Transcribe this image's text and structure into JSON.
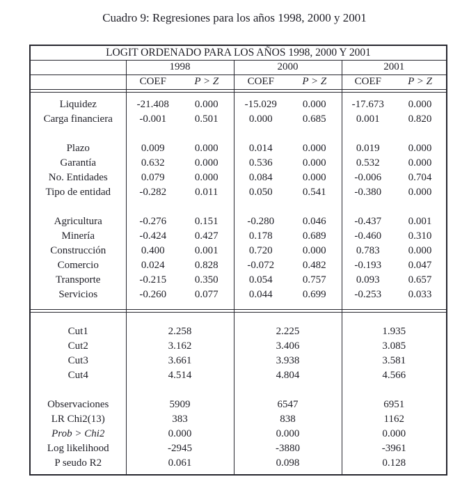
{
  "caption": "Cuadro 9: Regresiones para los años 1998, 2000 y 2001",
  "colors": {
    "text": "#1e1e26",
    "border": "#26262e",
    "background": "#ffffff"
  },
  "table": {
    "title": "LOGIT ORDENADO PARA LOS AÑOS 1998, 2000 Y 2001",
    "years": [
      "1998",
      "2000",
      "2001"
    ],
    "sub_headers": {
      "coef": "COEF",
      "pz": "P > Z"
    },
    "coef_sections": [
      {
        "rows": [
          {
            "label": "Liquidez",
            "cells": [
              "-21.408",
              "0.000",
              "-15.029",
              "0.000",
              "-17.673",
              "0.000"
            ]
          },
          {
            "label": "Carga financiera",
            "cells": [
              "-0.001",
              "0.501",
              "0.000",
              "0.685",
              "0.001",
              "0.820"
            ]
          }
        ]
      },
      {
        "rows": [
          {
            "label": "Plazo",
            "cells": [
              "0.009",
              "0.000",
              "0.014",
              "0.000",
              "0.019",
              "0.000"
            ]
          },
          {
            "label": "Garantía",
            "cells": [
              "0.632",
              "0.000",
              "0.536",
              "0.000",
              "0.532",
              "0.000"
            ]
          },
          {
            "label": "No. Entidades",
            "cells": [
              "0.079",
              "0.000",
              "0.084",
              "0.000",
              "-0.006",
              "0.704"
            ]
          },
          {
            "label": "Tipo de entidad",
            "cells": [
              "-0.282",
              "0.011",
              "0.050",
              "0.541",
              "-0.380",
              "0.000"
            ]
          }
        ]
      },
      {
        "rows": [
          {
            "label": "Agricultura",
            "cells": [
              "-0.276",
              "0.151",
              "-0.280",
              "0.046",
              "-0.437",
              "0.001"
            ]
          },
          {
            "label": "Minería",
            "cells": [
              "-0.424",
              "0.427",
              "0.178",
              "0.689",
              "-0.460",
              "0.310"
            ]
          },
          {
            "label": "Construcción",
            "cells": [
              "0.400",
              "0.001",
              "0.720",
              "0.000",
              "0.783",
              "0.000"
            ]
          },
          {
            "label": "Comercio",
            "cells": [
              "0.024",
              "0.828",
              "-0.072",
              "0.482",
              "-0.193",
              "0.047"
            ]
          },
          {
            "label": "Transporte",
            "cells": [
              "-0.215",
              "0.350",
              "0.054",
              "0.757",
              "0.093",
              "0.657"
            ]
          },
          {
            "label": "Servicios",
            "cells": [
              "-0.260",
              "0.077",
              "0.044",
              "0.699",
              "-0.253",
              "0.033"
            ]
          }
        ]
      }
    ],
    "summary_sections": [
      {
        "rows": [
          {
            "label": "Cut1",
            "cells": [
              "2.258",
              "2.225",
              "1.935"
            ]
          },
          {
            "label": "Cut2",
            "cells": [
              "3.162",
              "3.406",
              "3.085"
            ]
          },
          {
            "label": "Cut3",
            "cells": [
              "3.661",
              "3.938",
              "3.581"
            ]
          },
          {
            "label": "Cut4",
            "cells": [
              "4.514",
              "4.804",
              "4.566"
            ]
          }
        ]
      },
      {
        "rows": [
          {
            "label": "Observaciones",
            "cells": [
              "5909",
              "6547",
              "6951"
            ]
          },
          {
            "label": "LR Chi2(13)",
            "cells": [
              "383",
              "838",
              "1162"
            ]
          },
          {
            "label": "Prob > Chi2",
            "italic": true,
            "cells": [
              "0.000",
              "0.000",
              "0.000"
            ]
          },
          {
            "label": "Log likelihood",
            "cells": [
              "-2945",
              "-3880",
              "-3961"
            ]
          },
          {
            "label": "P seudo R2",
            "cells": [
              "0.061",
              "0.098",
              "0.128"
            ]
          }
        ]
      }
    ]
  }
}
